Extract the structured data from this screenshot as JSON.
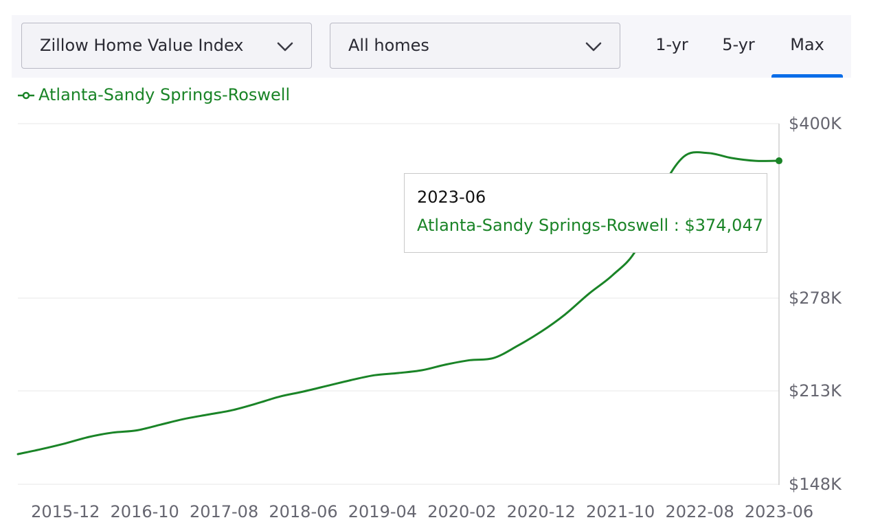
{
  "controls": {
    "metric_dropdown": {
      "selected": "Zillow Home Value Index",
      "icon": "chevron-down-icon"
    },
    "home_type_dropdown": {
      "selected": "All homes",
      "icon": "chevron-down-icon"
    },
    "range_tabs": [
      {
        "label": "1-yr",
        "active": false
      },
      {
        "label": "5-yr",
        "active": false
      },
      {
        "label": "Max",
        "active": true
      }
    ],
    "accent_color": "#0a6de8"
  },
  "legend": {
    "label": "Atlanta-Sandy Springs-Roswell",
    "color": "#1a8427",
    "icon": "line-marker-icon"
  },
  "tooltip": {
    "date": "2023-06",
    "series": "Atlanta-Sandy Springs-Roswell",
    "value": "$374,047"
  },
  "chart_data": {
    "type": "line",
    "title": "",
    "xlabel": "",
    "ylabel": "",
    "x_ticks": [
      "2015-12",
      "2016-10",
      "2017-08",
      "2018-06",
      "2019-04",
      "2020-02",
      "2020-12",
      "2021-10",
      "2022-08",
      "2023-06"
    ],
    "y_ticks": [
      "$148K",
      "$213K",
      "$278K",
      "$400K"
    ],
    "y_tick_values": [
      148000,
      213000,
      278000,
      400000
    ],
    "ylim": [
      148000,
      400000
    ],
    "xlim": [
      "2015-06",
      "2023-06"
    ],
    "grid": true,
    "legend_position": "top-left",
    "series": [
      {
        "name": "Atlanta-Sandy Springs-Roswell",
        "color": "#1a8427",
        "x": [
          "2015-06",
          "2015-09",
          "2015-12",
          "2016-03",
          "2016-06",
          "2016-09",
          "2016-12",
          "2017-03",
          "2017-06",
          "2017-09",
          "2017-12",
          "2018-03",
          "2018-06",
          "2018-09",
          "2018-12",
          "2019-03",
          "2019-06",
          "2019-09",
          "2019-12",
          "2020-03",
          "2020-06",
          "2020-09",
          "2020-12",
          "2021-03",
          "2021-06",
          "2021-09",
          "2021-12",
          "2022-03",
          "2022-06",
          "2022-09",
          "2022-12",
          "2023-03",
          "2023-06"
        ],
        "values": [
          169000,
          172500,
          176500,
          181000,
          184000,
          185500,
          189500,
          193500,
          196500,
          199500,
          204000,
          209000,
          212500,
          216500,
          220500,
          224000,
          225500,
          227500,
          231500,
          234500,
          236000,
          244500,
          254500,
          266500,
          281000,
          294000,
          312000,
          352000,
          377000,
          379500,
          376000,
          374000,
          374047
        ]
      }
    ]
  }
}
